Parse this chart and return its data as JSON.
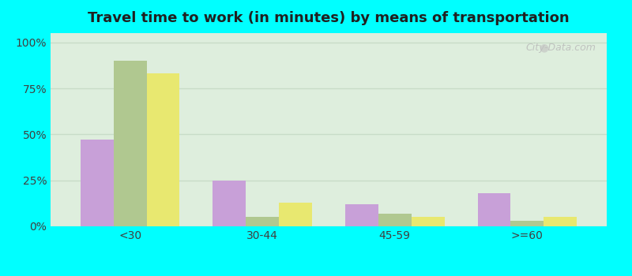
{
  "title": "Travel time to work (in minutes) by means of transportation",
  "categories": [
    "<30",
    "30-44",
    "45-59",
    ">=60"
  ],
  "series": {
    "Public transportation - Nebraska": [
      47,
      25,
      12,
      18
    ],
    "Other means - Beemer": [
      90,
      5,
      7,
      3
    ],
    "Other means - Nebraska": [
      83,
      13,
      5,
      5
    ]
  },
  "colors": {
    "Public transportation - Nebraska": "#c8a0d8",
    "Other means - Beemer": "#b0c890",
    "Other means - Nebraska": "#e8e870"
  },
  "legend_colors": {
    "Public transportation - Nebraska": "#e8a0c8",
    "Other means - Beemer": "#d8d8a0",
    "Other means - Nebraska": "#e8e050"
  },
  "yticks": [
    0,
    25,
    50,
    75,
    100
  ],
  "ytick_labels": [
    "0%",
    "25%",
    "50%",
    "75%",
    "100%"
  ],
  "ylim": [
    0,
    105
  ],
  "background_color": "#deeedd",
  "outer_background": "#00ffff",
  "bar_width": 0.25,
  "grid_color": "#c8dcc8"
}
